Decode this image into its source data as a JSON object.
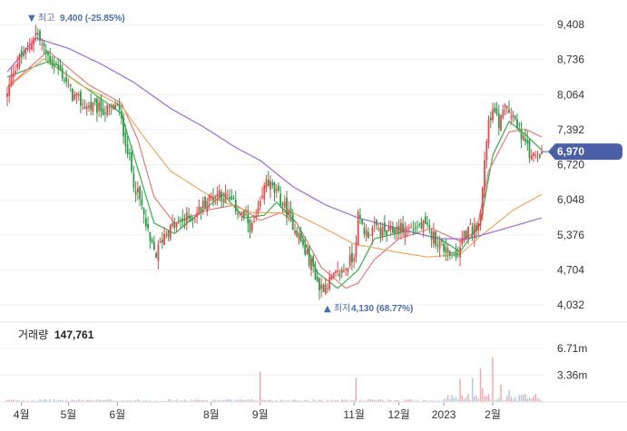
{
  "chart_data": {
    "type": "candlestick",
    "y_ticks": [
      "9,408",
      "8,736",
      "8,064",
      "7,392",
      "6,720",
      "6,048",
      "5,376",
      "4,704",
      "4,032"
    ],
    "y_tick_values": [
      9408,
      8736,
      8064,
      7392,
      6720,
      6048,
      5376,
      4704,
      4032
    ],
    "x_labels": [
      "4월",
      "5월",
      "6월",
      "8월",
      "9월",
      "11월",
      "12월",
      "2023",
      "2월"
    ],
    "x_label_index": [
      7,
      30,
      54,
      100,
      124,
      170,
      192,
      214,
      238
    ],
    "current_price": {
      "label": "6,970",
      "value": 6970
    },
    "high_annotation": {
      "prefix": "▼ 최고",
      "text": "9,400 (-25.85%)",
      "value": 9400,
      "index": 14
    },
    "low_annotation": {
      "prefix": "▲ 최저",
      "text": "4,130 (68.77%)",
      "value": 4130,
      "index": 153
    },
    "volume": {
      "title": "거래량",
      "value": "147,761",
      "ticks": [
        "6.71m",
        "3.36m"
      ],
      "tick_values": [
        6710000,
        3360000
      ]
    },
    "price_keypoints": [
      [
        0,
        8050
      ],
      [
        3,
        8550
      ],
      [
        6,
        8750
      ],
      [
        10,
        8900
      ],
      [
        14,
        9300
      ],
      [
        18,
        8900
      ],
      [
        22,
        8700
      ],
      [
        27,
        8450
      ],
      [
        32,
        8050
      ],
      [
        38,
        7850
      ],
      [
        44,
        7800
      ],
      [
        50,
        7750
      ],
      [
        54,
        7850
      ],
      [
        58,
        7200
      ],
      [
        62,
        6400
      ],
      [
        66,
        5900
      ],
      [
        70,
        5200
      ],
      [
        73,
        5000
      ],
      [
        77,
        5400
      ],
      [
        82,
        5550
      ],
      [
        86,
        5650
      ],
      [
        92,
        5750
      ],
      [
        98,
        6050
      ],
      [
        104,
        6200
      ],
      [
        110,
        6000
      ],
      [
        116,
        5700
      ],
      [
        120,
        5500
      ],
      [
        124,
        5900
      ],
      [
        127,
        6450
      ],
      [
        130,
        6250
      ],
      [
        134,
        6050
      ],
      [
        138,
        5750
      ],
      [
        142,
        5450
      ],
      [
        146,
        5050
      ],
      [
        150,
        4750
      ],
      [
        153,
        4350
      ],
      [
        157,
        4450
      ],
      [
        162,
        4600
      ],
      [
        166,
        4750
      ],
      [
        170,
        5000
      ],
      [
        172,
        5700
      ],
      [
        176,
        5400
      ],
      [
        180,
        5500
      ],
      [
        186,
        5400
      ],
      [
        192,
        5500
      ],
      [
        198,
        5500
      ],
      [
        204,
        5550
      ],
      [
        210,
        5300
      ],
      [
        216,
        5050
      ],
      [
        220,
        4900
      ],
      [
        224,
        5400
      ],
      [
        228,
        5500
      ],
      [
        232,
        5700
      ],
      [
        235,
        7300
      ],
      [
        238,
        7800
      ],
      [
        241,
        7500
      ],
      [
        244,
        7800
      ],
      [
        248,
        7700
      ],
      [
        252,
        7300
      ],
      [
        256,
        6900
      ],
      [
        260,
        6950
      ],
      [
        262,
        6970
      ]
    ],
    "ma_lines": [
      {
        "color": "#2db34a",
        "keypoints": [
          [
            0,
            8400
          ],
          [
            20,
            8700
          ],
          [
            40,
            8150
          ],
          [
            56,
            7700
          ],
          [
            62,
            6900
          ],
          [
            72,
            5600
          ],
          [
            82,
            5400
          ],
          [
            96,
            5850
          ],
          [
            106,
            6150
          ],
          [
            116,
            5700
          ],
          [
            126,
            5750
          ],
          [
            132,
            6000
          ],
          [
            142,
            5600
          ],
          [
            152,
            4650
          ],
          [
            162,
            4350
          ],
          [
            172,
            4700
          ],
          [
            180,
            5300
          ],
          [
            196,
            5450
          ],
          [
            212,
            5300
          ],
          [
            222,
            5050
          ],
          [
            232,
            5600
          ],
          [
            238,
            6900
          ],
          [
            246,
            7550
          ],
          [
            254,
            7300
          ],
          [
            262,
            7000
          ]
        ]
      },
      {
        "color": "#ec7a7a",
        "keypoints": [
          [
            0,
            8200
          ],
          [
            20,
            8900
          ],
          [
            40,
            8250
          ],
          [
            56,
            7900
          ],
          [
            64,
            7200
          ],
          [
            72,
            6100
          ],
          [
            82,
            5600
          ],
          [
            98,
            5850
          ],
          [
            112,
            5950
          ],
          [
            124,
            5650
          ],
          [
            134,
            5800
          ],
          [
            142,
            5600
          ],
          [
            154,
            4750
          ],
          [
            166,
            4350
          ],
          [
            172,
            4450
          ],
          [
            180,
            4900
          ],
          [
            192,
            5300
          ],
          [
            208,
            5500
          ],
          [
            222,
            5250
          ],
          [
            230,
            5450
          ],
          [
            236,
            6600
          ],
          [
            246,
            7350
          ],
          [
            254,
            7400
          ],
          [
            262,
            7250
          ]
        ]
      },
      {
        "color": "#f0a860",
        "keypoints": [
          [
            0,
            8200
          ],
          [
            18,
            8750
          ],
          [
            36,
            8250
          ],
          [
            56,
            7850
          ],
          [
            66,
            7300
          ],
          [
            80,
            6600
          ],
          [
            100,
            6100
          ],
          [
            120,
            5800
          ],
          [
            140,
            5800
          ],
          [
            158,
            5450
          ],
          [
            170,
            5200
          ],
          [
            190,
            5050
          ],
          [
            206,
            4950
          ],
          [
            222,
            5000
          ],
          [
            232,
            5350
          ],
          [
            248,
            5850
          ],
          [
            262,
            6150
          ]
        ]
      },
      {
        "color": "#9b6be0",
        "keypoints": [
          [
            0,
            8500
          ],
          [
            14,
            9150
          ],
          [
            30,
            8950
          ],
          [
            46,
            8650
          ],
          [
            62,
            8300
          ],
          [
            80,
            7800
          ],
          [
            96,
            7450
          ],
          [
            112,
            7050
          ],
          [
            124,
            6800
          ],
          [
            140,
            6300
          ],
          [
            156,
            5950
          ],
          [
            172,
            5700
          ],
          [
            196,
            5450
          ],
          [
            212,
            5300
          ],
          [
            226,
            5300
          ],
          [
            240,
            5450
          ],
          [
            262,
            5700
          ]
        ]
      }
    ]
  }
}
